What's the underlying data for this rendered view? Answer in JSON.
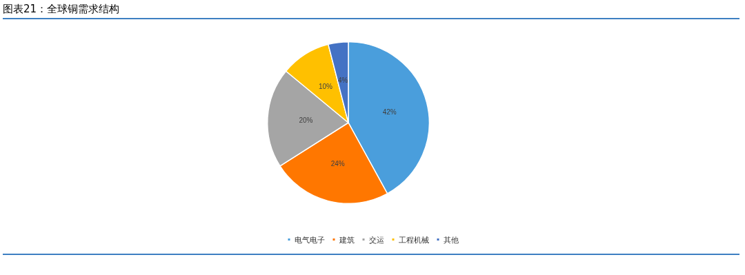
{
  "chart_data": {
    "type": "pie",
    "title": "图表21：全球铜需求结构",
    "categories": [
      "电气电子",
      "建筑",
      "交运",
      "工程机械",
      "其他"
    ],
    "values": [
      42,
      24,
      20,
      10,
      4
    ],
    "colors": [
      "#4a9edc",
      "#ff7700",
      "#a5a5a5",
      "#ffc000",
      "#4472c4"
    ],
    "value_labels": [
      "42%",
      "24%",
      "20%",
      "10%",
      "4%"
    ],
    "legend": "bottom"
  }
}
